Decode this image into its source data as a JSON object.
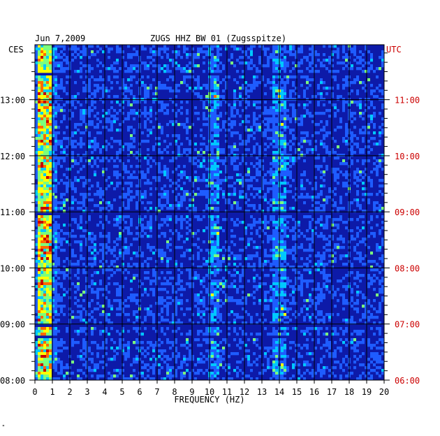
{
  "header": {
    "date": "Jun 7,2009",
    "station": "ZUGS HHZ BW 01 (Zugsspitze)"
  },
  "corner_mark": "\"",
  "colors": {
    "background_blue": "#0d1aa8",
    "dark_blue": "#00006e",
    "grid": "#000000",
    "utc_label": "#cc0000",
    "local_label": "#000000"
  },
  "chart_data": {
    "type": "heatmap",
    "title": "ZUGS HHZ BW 01 (Zugsspitze)",
    "xlabel": "FREQUENCY (HZ)",
    "xlim": [
      0,
      20
    ],
    "x_ticks": [
      "0",
      "1",
      "2",
      "3",
      "4",
      "5",
      "6",
      "7",
      "8",
      "9",
      "10",
      "11",
      "12",
      "13",
      "14",
      "15",
      "16",
      "17",
      "18",
      "19",
      "20"
    ],
    "left_axis": {
      "label": "CES",
      "ticks": [
        {
          "hours": 13,
          "label": "13:00"
        },
        {
          "hours": 12,
          "label": "12:00"
        },
        {
          "hours": 11,
          "label": "11:00"
        },
        {
          "hours": 10,
          "label": "10:00"
        },
        {
          "hours": 9,
          "label": "09:00"
        },
        {
          "hours": 8,
          "label": "08:00"
        }
      ]
    },
    "right_axis": {
      "label": "UTC",
      "ticks": [
        {
          "hours": 11,
          "label": "11:00"
        },
        {
          "hours": 10,
          "label": "10:00"
        },
        {
          "hours": 9,
          "label": "09:00"
        },
        {
          "hours": 8,
          "label": "08:00"
        },
        {
          "hours": 7,
          "label": "07:00"
        },
        {
          "hours": 6,
          "label": "06:00"
        }
      ]
    },
    "time_range_ces": [
      8.0,
      13.98
    ],
    "grid": true,
    "colormap": [
      "#00006e",
      "#0d1aa8",
      "#1e5cff",
      "#00c8ff",
      "#7cff7c",
      "#ffff00",
      "#ff6a00",
      "#c80000"
    ],
    "features": {
      "low_freq_band_hz": [
        0.1,
        0.9
      ],
      "persistent_lines_hz": [
        10.2,
        14.0
      ],
      "dark_gap_rows_ces": [
        13.5,
        13.48,
        11.0,
        9.0,
        8.8
      ]
    }
  }
}
